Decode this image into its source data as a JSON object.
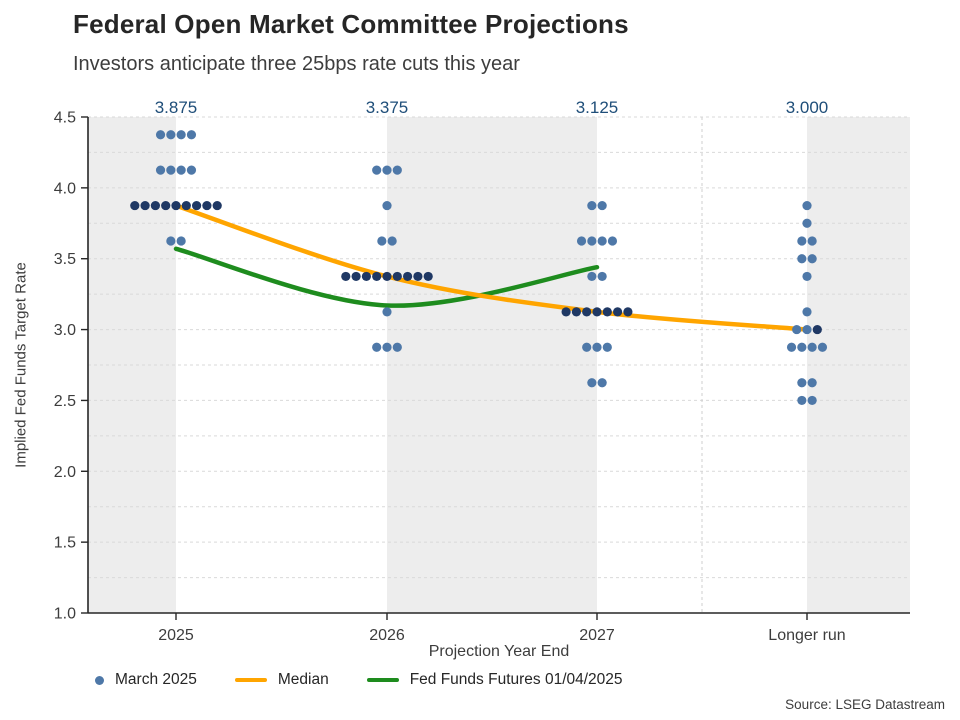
{
  "header": {
    "title": "Federal Open Market Committee Projections",
    "subtitle": "Investors anticipate three 25bps rate cuts this year"
  },
  "footer": {
    "source": "Source: LSEG Datastream"
  },
  "legend": {
    "items": [
      {
        "label": "March 2025",
        "swatch": "dot",
        "color": "#4e78a8"
      },
      {
        "label": "Median",
        "swatch": "line",
        "color": "#FFA500"
      },
      {
        "label": "Fed Funds Futures 01/04/2025",
        "swatch": "line",
        "color": "#1e8c1e"
      }
    ]
  },
  "chart_data": {
    "type": "scatter",
    "title": "Federal Open Market Committee Projections",
    "subtitle": "Investors anticipate three 25bps rate cuts this year",
    "xlabel": "Projection Year End",
    "ylabel": "Implied Fed Funds Target Rate",
    "ylim": [
      1.0,
      4.5
    ],
    "yticks": [
      1.0,
      1.5,
      2.0,
      2.5,
      3.0,
      3.5,
      4.0,
      4.5
    ],
    "grid_step": 0.25,
    "grid_on": true,
    "categories": [
      "2025",
      "2026",
      "2027",
      "Longer run"
    ],
    "median_labels": [
      "3.875",
      "3.375",
      "3.125",
      "3.000"
    ],
    "dot_plot": [
      {
        "category": "2025",
        "rows": [
          {
            "rate": 4.375,
            "count": 4
          },
          {
            "rate": 4.125,
            "count": 4
          },
          {
            "rate": 3.875,
            "count": 9,
            "dark": true
          },
          {
            "rate": 3.625,
            "count": 2
          }
        ]
      },
      {
        "category": "2026",
        "rows": [
          {
            "rate": 4.125,
            "count": 3
          },
          {
            "rate": 3.875,
            "count": 1
          },
          {
            "rate": 3.625,
            "count": 2
          },
          {
            "rate": 3.375,
            "count": 9,
            "dark": true
          },
          {
            "rate": 3.125,
            "count": 1
          },
          {
            "rate": 2.875,
            "count": 3
          }
        ]
      },
      {
        "category": "2027",
        "rows": [
          {
            "rate": 3.875,
            "count": 2
          },
          {
            "rate": 3.625,
            "count": 4
          },
          {
            "rate": 3.375,
            "count": 2
          },
          {
            "rate": 3.125,
            "count": 7,
            "dark": true
          },
          {
            "rate": 2.875,
            "count": 3
          },
          {
            "rate": 2.625,
            "count": 2
          }
        ]
      },
      {
        "category": "Longer run",
        "rows": [
          {
            "rate": 3.875,
            "count": 1
          },
          {
            "rate": 3.75,
            "count": 1
          },
          {
            "rate": 3.625,
            "count": 2
          },
          {
            "rate": 3.5,
            "count": 2
          },
          {
            "rate": 3.375,
            "count": 1
          },
          {
            "rate": 3.125,
            "count": 1
          },
          {
            "rate": 3.0,
            "count": 3,
            "dark_last": true
          },
          {
            "rate": 2.875,
            "count": 4
          },
          {
            "rate": 2.625,
            "count": 2
          },
          {
            "rate": 2.5,
            "count": 2
          }
        ]
      }
    ],
    "series": [
      {
        "name": "Median",
        "type": "line",
        "color": "#FFA500",
        "values": [
          3.875,
          3.375,
          3.125,
          3.0
        ]
      },
      {
        "name": "Fed Funds Futures 01/04/2025",
        "type": "line",
        "color": "#1e8c1e",
        "values": [
          3.57,
          3.17,
          3.44,
          null
        ]
      }
    ],
    "legend_position": "bottom",
    "colors": {
      "dot": "#4e78a8",
      "dot_dark": "#1f3864",
      "median_label_text": "#1f4e79",
      "band": "#ededed",
      "grid": "#d9d9d9",
      "separator": "#cfcfcf",
      "axis": "#262626",
      "tick_text": "#3d3d3d"
    }
  }
}
